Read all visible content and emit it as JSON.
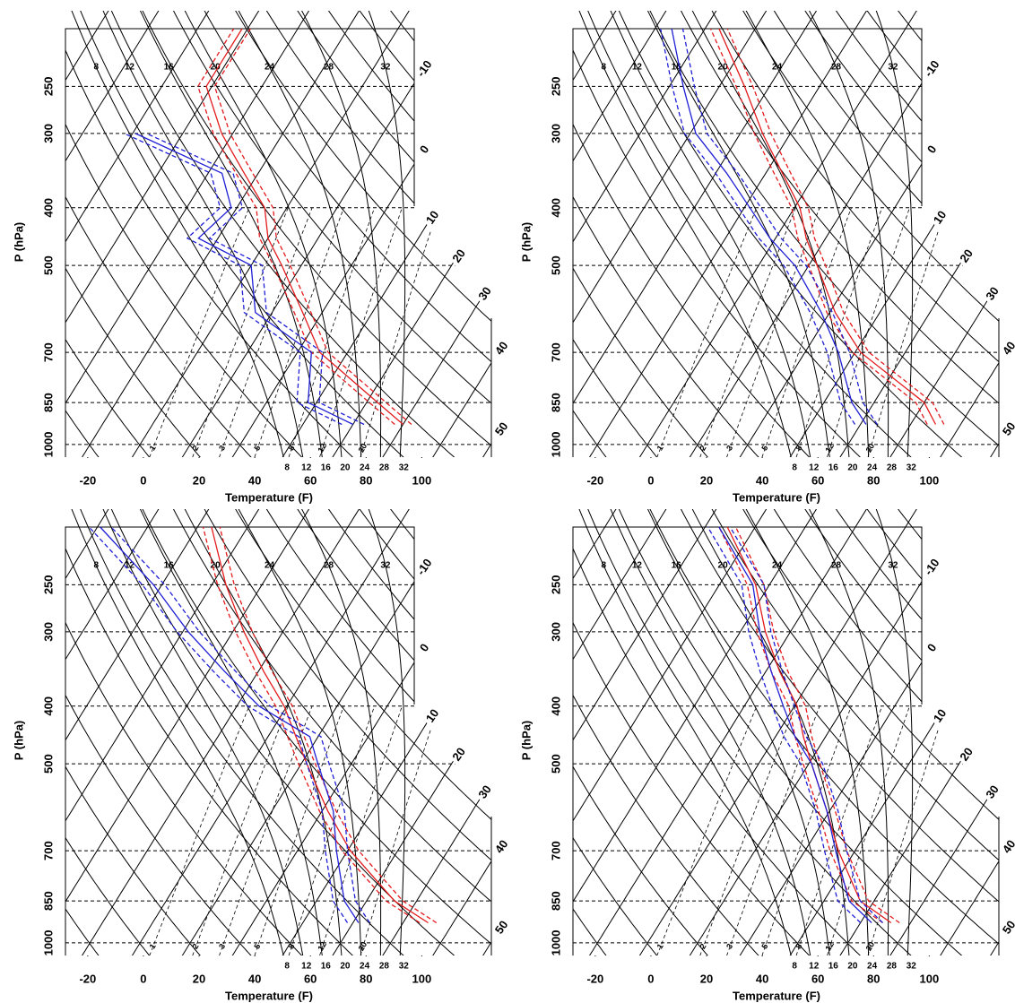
{
  "chart_data": [
    {
      "type": "skewt",
      "xlabel": "Temperature (F)",
      "ylabel": "P (hPa)",
      "xlim": [
        -28,
        125
      ],
      "xticks": [
        -20,
        0,
        20,
        40,
        60,
        80,
        100
      ],
      "ylim": [
        1050,
        200
      ],
      "yticks": [
        250,
        300,
        400,
        500,
        700,
        850,
        1000
      ],
      "log_y": true,
      "isotherm_labels": [
        -10,
        0,
        10,
        20,
        30,
        40,
        50
      ],
      "top_labels": [
        8,
        12,
        16,
        20,
        24,
        28,
        32
      ],
      "mixing_ratio_labels": [
        1,
        2,
        3,
        5,
        8,
        12,
        20
      ],
      "moist_labels": [
        8,
        12,
        16,
        20,
        24,
        28,
        32
      ],
      "y": [
        925,
        850,
        700,
        600,
        500,
        450,
        400,
        350,
        300,
        250,
        200
      ],
      "series": [
        {
          "color": "#e41a1c",
          "dash": false,
          "values": [
            86,
            72,
            40,
            25,
            7,
            -4,
            -12,
            -27,
            -44,
            -60,
            -60
          ]
        },
        {
          "color": "#e41a1c",
          "dash": true,
          "values": [
            89,
            75,
            43,
            28,
            10,
            -1,
            -9,
            -24,
            -41,
            -57,
            -57
          ]
        },
        {
          "color": "#e41a1c",
          "dash": true,
          "values": [
            83,
            69,
            37,
            22,
            4,
            -7,
            -15,
            -30,
            -47,
            -63,
            -63
          ]
        },
        {
          "color": "#1f1fd6",
          "dash": false,
          "values": [
            68,
            47,
            37,
            8,
            -4,
            -29,
            -24,
            -35,
            -75,
            null,
            null
          ]
        },
        {
          "color": "#1f1fd6",
          "dash": true,
          "values": [
            72,
            51,
            41,
            12,
            0,
            -25,
            -20,
            -31,
            -71,
            null,
            null
          ]
        },
        {
          "color": "#1f1fd6",
          "dash": true,
          "values": [
            64,
            43,
            33,
            4,
            -8,
            -33,
            -28,
            -39,
            -79,
            null,
            null
          ]
        }
      ]
    },
    {
      "type": "skewt",
      "xlabel": "Temperature (F)",
      "ylabel": "P (hPa)",
      "xlim": [
        -28,
        125
      ],
      "xticks": [
        -20,
        0,
        20,
        40,
        60,
        80,
        100
      ],
      "ylim": [
        1050,
        200
      ],
      "yticks": [
        250,
        300,
        400,
        500,
        700,
        850,
        1000
      ],
      "log_y": true,
      "isotherm_labels": [
        -10,
        0,
        10,
        20,
        30,
        40,
        50
      ],
      "top_labels": [
        8,
        12,
        16,
        20,
        24,
        28,
        32
      ],
      "mixing_ratio_labels": [
        1,
        2,
        3,
        5,
        8,
        12,
        20
      ],
      "moist_labels": [
        8,
        12,
        16,
        20,
        24,
        28,
        32
      ],
      "y": [
        925,
        850,
        700,
        600,
        500,
        450,
        400,
        350,
        300,
        250,
        200
      ],
      "series": [
        {
          "color": "#e41a1c",
          "dash": false,
          "values": [
            95,
            86,
            52,
            34,
            17,
            7,
            -2,
            -16,
            -32,
            -49,
            -71
          ]
        },
        {
          "color": "#e41a1c",
          "dash": true,
          "values": [
            98,
            89,
            55,
            37,
            20,
            10,
            1,
            -13,
            -29,
            -46,
            -68
          ]
        },
        {
          "color": "#e41a1c",
          "dash": true,
          "values": [
            92,
            83,
            49,
            31,
            14,
            4,
            -5,
            -19,
            -35,
            -52,
            -74
          ]
        },
        {
          "color": "#1f1fd6",
          "dash": false,
          "values": [
            70,
            60,
            44,
            29,
            9,
            -6,
            -20,
            -36,
            -56,
            -71,
            -88
          ]
        },
        {
          "color": "#1f1fd6",
          "dash": true,
          "values": [
            74,
            64,
            48,
            33,
            13,
            -2,
            -16,
            -32,
            -52,
            -67,
            -84
          ]
        },
        {
          "color": "#1f1fd6",
          "dash": true,
          "values": [
            66,
            56,
            40,
            25,
            5,
            -10,
            -24,
            -40,
            -60,
            -75,
            -92
          ]
        }
      ]
    },
    {
      "type": "skewt",
      "xlabel": "Temperature (F)",
      "ylabel": "P (hPa)",
      "xlim": [
        -28,
        125
      ],
      "xticks": [
        -20,
        0,
        20,
        40,
        60,
        80,
        100
      ],
      "ylim": [
        1050,
        200
      ],
      "yticks": [
        250,
        300,
        400,
        500,
        700,
        850,
        1000
      ],
      "log_y": true,
      "isotherm_labels": [
        -10,
        0,
        10,
        20,
        30,
        40,
        50
      ],
      "top_labels": [
        8,
        12,
        16,
        20,
        24,
        28,
        32
      ],
      "mixing_ratio_labels": [
        1,
        2,
        3,
        5,
        8,
        12,
        20
      ],
      "moist_labels": [
        8,
        12,
        16,
        20,
        24,
        28,
        32
      ],
      "y": [
        925,
        850,
        700,
        600,
        500,
        450,
        400,
        350,
        300,
        250,
        200
      ],
      "series": [
        {
          "color": "#e41a1c",
          "dash": false,
          "values": [
            95,
            78,
            51,
            34,
            16,
            6,
            -5,
            -20,
            -36,
            -53,
            -71
          ]
        },
        {
          "color": "#e41a1c",
          "dash": true,
          "values": [
            98,
            81,
            54,
            37,
            19,
            9,
            -2,
            -17,
            -33,
            -50,
            -68
          ]
        },
        {
          "color": "#e41a1c",
          "dash": true,
          "values": [
            92,
            75,
            48,
            31,
            13,
            3,
            -8,
            -23,
            -39,
            -56,
            -74
          ]
        },
        {
          "color": "#1f1fd6",
          "dash": false,
          "values": [
            70,
            60,
            46,
            36,
            20,
            11,
            -14,
            -34,
            -56,
            -79,
            -111
          ]
        },
        {
          "color": "#1f1fd6",
          "dash": true,
          "values": [
            74,
            64,
            50,
            40,
            24,
            15,
            -10,
            -30,
            -52,
            -75,
            -107
          ]
        },
        {
          "color": "#1f1fd6",
          "dash": true,
          "values": [
            66,
            56,
            42,
            32,
            16,
            7,
            -18,
            -38,
            -60,
            -83,
            -115
          ]
        }
      ]
    },
    {
      "type": "skewt",
      "xlabel": "Temperature (F)",
      "ylabel": "P (hPa)",
      "xlim": [
        -28,
        125
      ],
      "xticks": [
        -20,
        0,
        20,
        40,
        60,
        80,
        100
      ],
      "ylim": [
        1050,
        200
      ],
      "yticks": [
        250,
        300,
        400,
        500,
        700,
        850,
        1000
      ],
      "log_y": true,
      "isotherm_labels": [
        -10,
        0,
        10,
        20,
        30,
        40,
        50
      ],
      "top_labels": [
        8,
        12,
        16,
        20,
        24,
        28,
        32
      ],
      "mixing_ratio_labels": [
        1,
        2,
        3,
        5,
        8,
        12,
        20
      ],
      "moist_labels": [
        8,
        12,
        16,
        20,
        24,
        28,
        32
      ],
      "y": [
        925,
        850,
        700,
        600,
        500,
        450,
        400,
        350,
        300,
        250,
        200
      ],
      "series": [
        {
          "color": "#e41a1c",
          "dash": false,
          "values": [
            79,
            63,
            44,
            31,
            15,
            6,
            -3,
            -17,
            -31,
            -45,
            -68
          ]
        },
        {
          "color": "#e41a1c",
          "dash": true,
          "values": [
            82,
            66,
            47,
            34,
            18,
            9,
            0,
            -14,
            -28,
            -42,
            -65
          ]
        },
        {
          "color": "#e41a1c",
          "dash": true,
          "values": [
            76,
            60,
            41,
            28,
            12,
            3,
            -6,
            -20,
            -34,
            -48,
            -71
          ]
        },
        {
          "color": "#1f1fd6",
          "dash": false,
          "values": [
            72,
            59,
            43,
            31,
            15,
            3,
            -8,
            -20,
            -33,
            -46,
            -71
          ]
        },
        {
          "color": "#1f1fd6",
          "dash": true,
          "values": [
            76,
            63,
            47,
            35,
            19,
            7,
            -4,
            -16,
            -29,
            -42,
            -67
          ]
        },
        {
          "color": "#1f1fd6",
          "dash": true,
          "values": [
            68,
            55,
            39,
            27,
            11,
            -1,
            -12,
            -24,
            -37,
            -50,
            -75
          ]
        }
      ]
    }
  ]
}
